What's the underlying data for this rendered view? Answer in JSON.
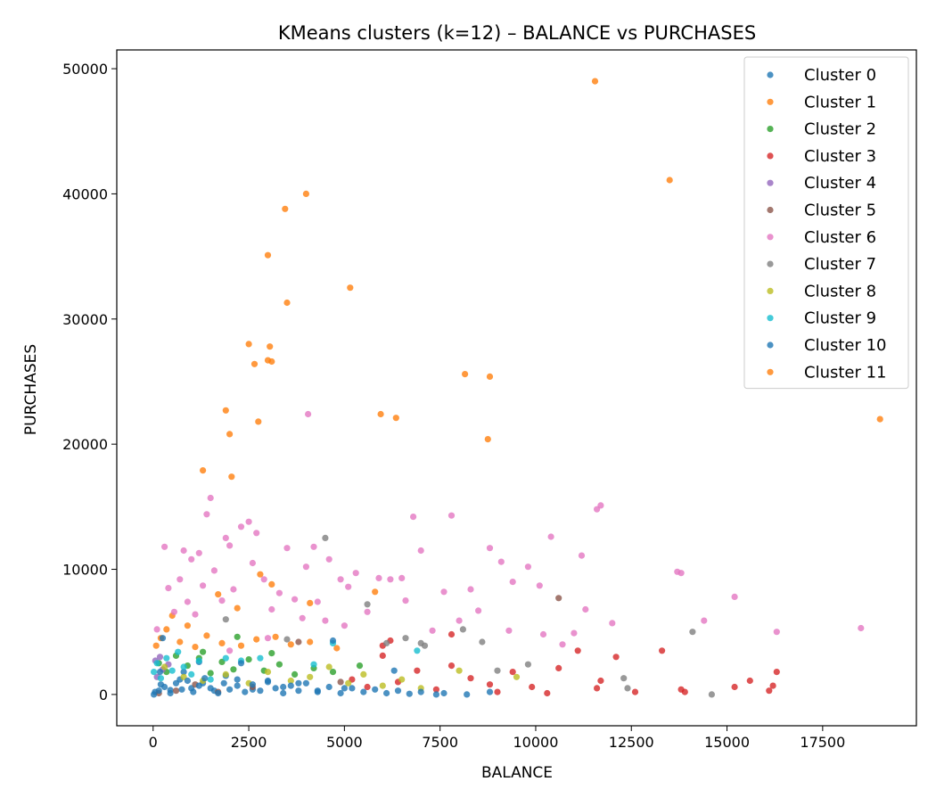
{
  "chart_data": {
    "type": "scatter",
    "title": "KMeans clusters (k=12) – BALANCE vs PURCHASES",
    "xlabel": "BALANCE",
    "ylabel": "PURCHASES",
    "xlim": [
      -950,
      19950
    ],
    "ylim": [
      -2500,
      51500
    ],
    "xticks": [
      0,
      2500,
      5000,
      7500,
      10000,
      12500,
      15000,
      17500
    ],
    "yticks": [
      0,
      10000,
      20000,
      30000,
      40000,
      50000
    ],
    "grid": false,
    "legend_position": "top-right",
    "series": [
      {
        "name": "Cluster 0",
        "color": "#1f77b4",
        "points": [
          [
            50,
            200
          ],
          [
            200,
            800
          ],
          [
            450,
            350
          ],
          [
            700,
            1200
          ],
          [
            1000,
            500
          ],
          [
            1300,
            900
          ],
          [
            1600,
            300
          ],
          [
            1900,
            1500
          ],
          [
            2200,
            700
          ],
          [
            2600,
            400
          ],
          [
            3000,
            1100
          ],
          [
            3400,
            600
          ],
          [
            3800,
            900
          ],
          [
            4300,
            300
          ],
          [
            5000,
            500
          ],
          [
            1200,
            2600
          ],
          [
            800,
            1800
          ]
        ]
      },
      {
        "name": "Cluster 1",
        "color": "#ff7f0e",
        "points": [
          [
            80,
            3900
          ],
          [
            200,
            4500
          ],
          [
            350,
            5200
          ],
          [
            500,
            6300
          ],
          [
            700,
            4200
          ],
          [
            900,
            5500
          ],
          [
            1100,
            3800
          ],
          [
            1400,
            4700
          ],
          [
            1800,
            4100
          ],
          [
            2300,
            3900
          ],
          [
            2700,
            4400
          ],
          [
            3200,
            4600
          ],
          [
            3600,
            4000
          ],
          [
            4100,
            4200
          ],
          [
            4800,
            3700
          ],
          [
            2800,
            9600
          ],
          [
            3100,
            8800
          ],
          [
            1700,
            8000
          ],
          [
            4100,
            7300
          ],
          [
            2200,
            6900
          ],
          [
            5800,
            8200
          ]
        ]
      },
      {
        "name": "Cluster 2",
        "color": "#2ca02c",
        "points": [
          [
            150,
            2500
          ],
          [
            350,
            1800
          ],
          [
            600,
            3100
          ],
          [
            900,
            2300
          ],
          [
            1200,
            2900
          ],
          [
            1500,
            1700
          ],
          [
            1800,
            2600
          ],
          [
            2100,
            2000
          ],
          [
            2500,
            2800
          ],
          [
            2900,
            1900
          ],
          [
            3300,
            2400
          ],
          [
            3700,
            1600
          ],
          [
            4200,
            2100
          ],
          [
            4700,
            1800
          ],
          [
            5400,
            2300
          ],
          [
            1300,
            3400
          ],
          [
            2200,
            4600
          ],
          [
            3100,
            3300
          ]
        ]
      },
      {
        "name": "Cluster 3",
        "color": "#d62728",
        "points": [
          [
            5200,
            1200
          ],
          [
            5600,
            600
          ],
          [
            6000,
            3100
          ],
          [
            6400,
            1000
          ],
          [
            6900,
            1900
          ],
          [
            7400,
            400
          ],
          [
            7800,
            2300
          ],
          [
            8300,
            1300
          ],
          [
            8800,
            800
          ],
          [
            9400,
            1800
          ],
          [
            9900,
            600
          ],
          [
            10600,
            2100
          ],
          [
            11100,
            3500
          ],
          [
            11700,
            1100
          ],
          [
            12100,
            3000
          ],
          [
            12600,
            200
          ],
          [
            13300,
            3500
          ],
          [
            13900,
            200
          ],
          [
            15200,
            600
          ],
          [
            15600,
            1100
          ],
          [
            16200,
            700
          ],
          [
            16300,
            1800
          ],
          [
            16100,
            300
          ],
          [
            10300,
            100
          ],
          [
            11600,
            500
          ],
          [
            13800,
            400
          ],
          [
            9000,
            200
          ],
          [
            6000,
            3900
          ],
          [
            7800,
            4800
          ],
          [
            6200,
            4300
          ]
        ]
      },
      {
        "name": "Cluster 4",
        "color": "#9467bd",
        "points": [
          [
            100,
            1400
          ],
          [
            250,
            2000
          ],
          [
            400,
            2400
          ],
          [
            180,
            3000
          ],
          [
            60,
            2700
          ]
        ]
      },
      {
        "name": "Cluster 5",
        "color": "#8c564b",
        "points": [
          [
            150,
            100
          ],
          [
            600,
            300
          ],
          [
            1100,
            800
          ],
          [
            1700,
            200
          ],
          [
            2600,
            600
          ],
          [
            3800,
            4200
          ],
          [
            4900,
            1000
          ],
          [
            10600,
            7700
          ]
        ]
      },
      {
        "name": "Cluster 6",
        "color": "#e377c2",
        "points": [
          [
            100,
            5200
          ],
          [
            300,
            11800
          ],
          [
            400,
            8500
          ],
          [
            550,
            6600
          ],
          [
            700,
            9200
          ],
          [
            800,
            11500
          ],
          [
            900,
            7400
          ],
          [
            1000,
            10800
          ],
          [
            1100,
            6400
          ],
          [
            1200,
            11300
          ],
          [
            1300,
            8700
          ],
          [
            1400,
            14400
          ],
          [
            1500,
            15700
          ],
          [
            1600,
            9900
          ],
          [
            1800,
            7500
          ],
          [
            1900,
            12500
          ],
          [
            2000,
            11900
          ],
          [
            2100,
            8400
          ],
          [
            2300,
            13400
          ],
          [
            2500,
            13800
          ],
          [
            2600,
            10500
          ],
          [
            2700,
            12900
          ],
          [
            2900,
            9200
          ],
          [
            3100,
            6800
          ],
          [
            3300,
            8100
          ],
          [
            3500,
            11700
          ],
          [
            3700,
            7600
          ],
          [
            3900,
            6100
          ],
          [
            4000,
            10200
          ],
          [
            4050,
            22400
          ],
          [
            4200,
            11800
          ],
          [
            4300,
            7400
          ],
          [
            4500,
            5900
          ],
          [
            4600,
            10800
          ],
          [
            4900,
            9200
          ],
          [
            5100,
            8600
          ],
          [
            5300,
            9700
          ],
          [
            5600,
            6600
          ],
          [
            5900,
            9300
          ],
          [
            6200,
            9200
          ],
          [
            6500,
            9300
          ],
          [
            6600,
            7500
          ],
          [
            6800,
            14200
          ],
          [
            7000,
            11500
          ],
          [
            7300,
            5100
          ],
          [
            7600,
            8200
          ],
          [
            7800,
            14300
          ],
          [
            8000,
            5900
          ],
          [
            8300,
            8400
          ],
          [
            8500,
            6700
          ],
          [
            8800,
            11700
          ],
          [
            9100,
            10600
          ],
          [
            9400,
            9000
          ],
          [
            9800,
            10200
          ],
          [
            10100,
            8700
          ],
          [
            10400,
            12600
          ],
          [
            10700,
            4000
          ],
          [
            11000,
            4900
          ],
          [
            11200,
            11100
          ],
          [
            11300,
            6800
          ],
          [
            11600,
            14800
          ],
          [
            11700,
            15100
          ],
          [
            12000,
            5700
          ],
          [
            13700,
            9800
          ],
          [
            13800,
            9700
          ],
          [
            14400,
            5900
          ],
          [
            15200,
            7800
          ],
          [
            16300,
            5000
          ],
          [
            18500,
            5300
          ],
          [
            2000,
            3500
          ],
          [
            3000,
            4500
          ],
          [
            5000,
            5500
          ],
          [
            9300,
            5100
          ],
          [
            10200,
            4800
          ]
        ]
      },
      {
        "name": "Cluster 7",
        "color": "#7f7f7f",
        "points": [
          [
            1900,
            6000
          ],
          [
            3500,
            4400
          ],
          [
            4500,
            12500
          ],
          [
            5600,
            7200
          ],
          [
            6100,
            4100
          ],
          [
            6600,
            4500
          ],
          [
            7000,
            4100
          ],
          [
            8100,
            5200
          ],
          [
            8600,
            4200
          ],
          [
            9800,
            2400
          ],
          [
            12300,
            1300
          ],
          [
            12400,
            500
          ],
          [
            14100,
            5000
          ],
          [
            14600,
            0
          ],
          [
            9000,
            1900
          ],
          [
            7100,
            3900
          ]
        ]
      },
      {
        "name": "Cluster 8",
        "color": "#bcbd22",
        "points": [
          [
            300,
            2200
          ],
          [
            800,
            1400
          ],
          [
            1300,
            1100
          ],
          [
            1900,
            1600
          ],
          [
            2500,
            900
          ],
          [
            3000,
            1800
          ],
          [
            3600,
            1100
          ],
          [
            4100,
            1400
          ],
          [
            4600,
            2200
          ],
          [
            5100,
            900
          ],
          [
            5500,
            1600
          ],
          [
            6000,
            700
          ],
          [
            6500,
            1200
          ],
          [
            7000,
            500
          ],
          [
            8000,
            1900
          ],
          [
            9500,
            1400
          ]
        ]
      },
      {
        "name": "Cluster 9",
        "color": "#17becf",
        "points": [
          [
            20,
            1800
          ],
          [
            100,
            2500
          ],
          [
            200,
            1300
          ],
          [
            350,
            2900
          ],
          [
            500,
            1900
          ],
          [
            650,
            3400
          ],
          [
            800,
            2200
          ],
          [
            1000,
            1600
          ],
          [
            1200,
            2700
          ],
          [
            1500,
            1200
          ],
          [
            1900,
            2900
          ],
          [
            2300,
            2700
          ],
          [
            2800,
            2900
          ],
          [
            4200,
            2400
          ],
          [
            4700,
            4100
          ],
          [
            6900,
            3500
          ]
        ]
      },
      {
        "name": "Cluster 10",
        "color": "#1f77b4",
        "points": [
          [
            20,
            0
          ],
          [
            150,
            300
          ],
          [
            300,
            600
          ],
          [
            450,
            100
          ],
          [
            600,
            900
          ],
          [
            750,
            400
          ],
          [
            900,
            1100
          ],
          [
            1050,
            200
          ],
          [
            1200,
            700
          ],
          [
            1350,
            1300
          ],
          [
            1500,
            500
          ],
          [
            1700,
            100
          ],
          [
            1850,
            900
          ],
          [
            2000,
            400
          ],
          [
            2200,
            1200
          ],
          [
            2400,
            200
          ],
          [
            2600,
            800
          ],
          [
            2800,
            300
          ],
          [
            3000,
            1000
          ],
          [
            3200,
            500
          ],
          [
            3400,
            100
          ],
          [
            3600,
            700
          ],
          [
            3800,
            300
          ],
          [
            4000,
            900
          ],
          [
            4300,
            200
          ],
          [
            4600,
            600
          ],
          [
            4900,
            100
          ],
          [
            5200,
            500
          ],
          [
            5500,
            200
          ],
          [
            5800,
            400
          ],
          [
            6100,
            100
          ],
          [
            6400,
            300
          ],
          [
            6700,
            50
          ],
          [
            7000,
            200
          ],
          [
            7400,
            0
          ],
          [
            7600,
            100
          ],
          [
            8200,
            0
          ],
          [
            8800,
            200
          ],
          [
            6300,
            1900
          ],
          [
            4700,
            4300
          ],
          [
            250,
            4500
          ],
          [
            180,
            1800
          ],
          [
            2300,
            2500
          ]
        ]
      },
      {
        "name": "Cluster 11",
        "color": "#ff7f0e",
        "points": [
          [
            1300,
            17900
          ],
          [
            1900,
            22700
          ],
          [
            2000,
            20800
          ],
          [
            2050,
            17400
          ],
          [
            2500,
            28000
          ],
          [
            2650,
            26400
          ],
          [
            2750,
            21800
          ],
          [
            3000,
            35100
          ],
          [
            3000,
            26700
          ],
          [
            3050,
            27800
          ],
          [
            3100,
            26600
          ],
          [
            3450,
            38800
          ],
          [
            3500,
            31300
          ],
          [
            4000,
            40000
          ],
          [
            5150,
            32500
          ],
          [
            5950,
            22400
          ],
          [
            6350,
            22100
          ],
          [
            8150,
            25600
          ],
          [
            8750,
            20400
          ],
          [
            8800,
            25400
          ],
          [
            11550,
            49000
          ],
          [
            13500,
            41100
          ],
          [
            19000,
            22000
          ]
        ]
      }
    ]
  }
}
